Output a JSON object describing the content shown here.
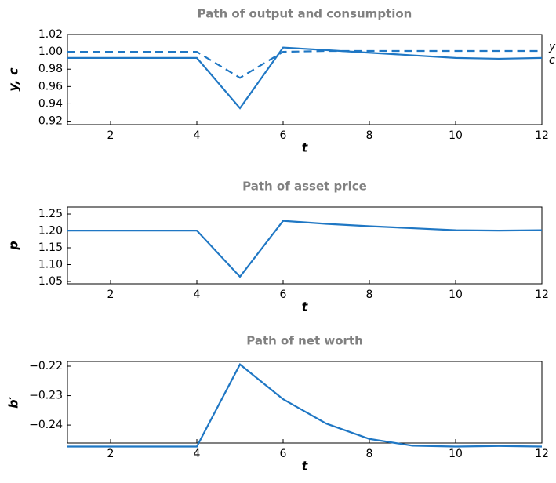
{
  "chart_data": [
    {
      "type": "line",
      "title": "Path of output and consumption",
      "x_label": "t",
      "y_label": "y, c",
      "x": [
        1,
        2,
        3,
        4,
        5,
        6,
        7,
        8,
        9,
        10,
        11,
        12
      ],
      "series": [
        {
          "name": "y",
          "color": "#1f77c4",
          "line_style": "dashed",
          "values": [
            1.0,
            1.0,
            1.0,
            1.0,
            0.97,
            1.0,
            1.001,
            1.001,
            1.001,
            1.001,
            1.001,
            1.001
          ]
        },
        {
          "name": "c",
          "color": "#1f77c4",
          "line_style": "solid",
          "values": [
            0.993,
            0.993,
            0.993,
            0.993,
            0.935,
            1.005,
            1.002,
            0.999,
            0.996,
            0.993,
            0.992,
            0.993
          ]
        }
      ],
      "xlim": [
        1,
        12
      ],
      "xticks": [
        2,
        4,
        6,
        8,
        10,
        12
      ],
      "ylim": [
        0.916,
        1.02
      ],
      "yticks": [
        0.92,
        0.94,
        0.96,
        0.98,
        {
          "value": 1.0,
          "label": "1.00"
        },
        1.02
      ]
    },
    {
      "type": "line",
      "title": "Path of asset price",
      "x_label": "t",
      "y_label": "p",
      "x": [
        1,
        2,
        3,
        4,
        5,
        6,
        7,
        8,
        9,
        10,
        11,
        12
      ],
      "series": [
        {
          "color": "#1f77c4",
          "line_style": "solid",
          "values": [
            1.201,
            1.201,
            1.201,
            1.201,
            1.064,
            1.23,
            1.221,
            1.214,
            1.208,
            1.202,
            1.201,
            1.202
          ]
        }
      ],
      "xlim": [
        1,
        12
      ],
      "xticks": [
        2,
        4,
        6,
        8,
        10,
        12
      ],
      "ylim": [
        1.043,
        1.271
      ],
      "yticks": [
        1.05,
        {
          "value": 1.1,
          "label": "1.10"
        },
        1.15,
        {
          "value": 1.2,
          "label": "1.20"
        },
        1.25
      ]
    },
    {
      "type": "line",
      "title": "Path of net worth",
      "x_label": "t",
      "y_label": "b′",
      "x": [
        1,
        2,
        3,
        4,
        5,
        6,
        7,
        8,
        9,
        10,
        11,
        12
      ],
      "series": [
        {
          "color": "#1f77c4",
          "line_style": "solid",
          "values": [
            -0.2473,
            -0.2473,
            -0.2473,
            -0.2473,
            -0.2194,
            -0.2312,
            -0.2395,
            -0.2447,
            -0.247,
            -0.2473,
            -0.2471,
            -0.2473
          ]
        }
      ],
      "xlim": [
        1,
        12
      ],
      "xticks": [
        2,
        4,
        6,
        8,
        10,
        12
      ],
      "ylim": [
        -0.2461,
        -0.2184
      ],
      "yticks": [
        {
          "value": -0.24,
          "label": "−0.24"
        },
        {
          "value": -0.23,
          "label": "−0.23"
        },
        {
          "value": -0.22,
          "label": "−0.22"
        }
      ]
    }
  ]
}
